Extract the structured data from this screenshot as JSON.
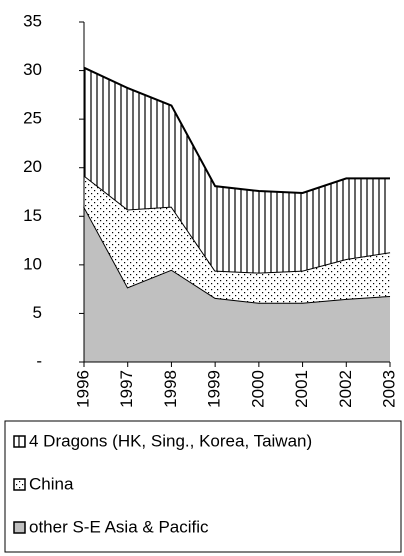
{
  "chart_data": {
    "type": "stacked_area",
    "categories": [
      "1996",
      "1997",
      "1998",
      "1999",
      "2000",
      "2001",
      "2002",
      "2003"
    ],
    "series": [
      {
        "name": "4 Dragons (HK, Sing., Korea, Taiwan)",
        "color": "#000000",
        "pattern": "vertical-stripes",
        "values": [
          11.1,
          12.5,
          10.4,
          8.7,
          8.4,
          8.0,
          8.3,
          7.6
        ]
      },
      {
        "name": "China",
        "color": "#000000",
        "pattern": "dots",
        "values": [
          3.2,
          8.0,
          6.5,
          2.8,
          3.1,
          3.3,
          4.1,
          4.5
        ]
      },
      {
        "name": "other S-E Asia & Pacific",
        "color": "#c0c0c0",
        "pattern": "solid",
        "values": [
          16.0,
          7.7,
          9.5,
          6.6,
          6.1,
          6.1,
          6.5,
          6.8
        ]
      }
    ],
    "ylim": [
      0,
      35
    ],
    "yticks": [
      {
        "value": 0,
        "label": "-"
      },
      5,
      10,
      15,
      20,
      25,
      30,
      35
    ],
    "legend": "bottom"
  }
}
